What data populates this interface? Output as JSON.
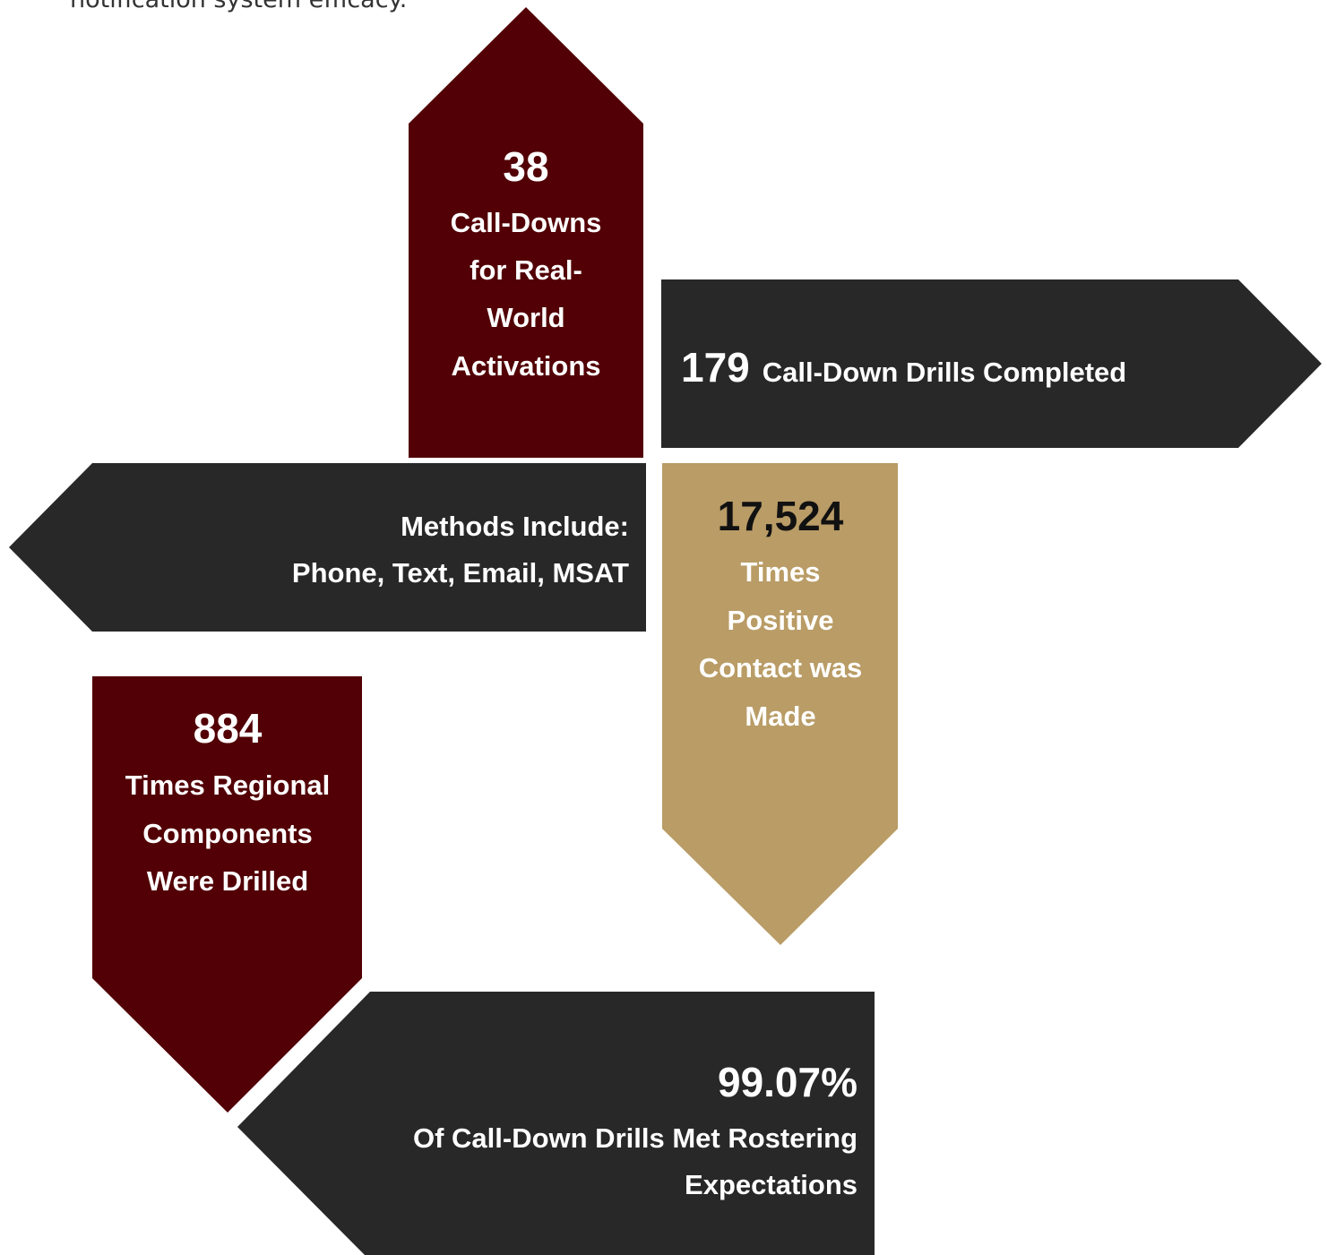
{
  "intro_text": "notification system efficacy.",
  "panels": [
    {
      "number": "38",
      "lines": [
        "Call-Downs",
        "for Real-",
        "World",
        "Activations"
      ]
    },
    {
      "number": "179",
      "lines": [
        "Call-Down Drills Completed"
      ]
    },
    {
      "lines": [
        "Methods Include:",
        "Phone, Text, Email, MSAT"
      ]
    },
    {
      "number": "17,524",
      "lines": [
        "Times",
        "Positive",
        "Contact was",
        "Made"
      ]
    },
    {
      "number": "884",
      "lines": [
        "Times Regional",
        "Components",
        "Were Drilled"
      ]
    },
    {
      "number": "99.07%",
      "lines": [
        "Of Call-Down Drills Met Rostering",
        "Expectations"
      ]
    }
  ]
}
